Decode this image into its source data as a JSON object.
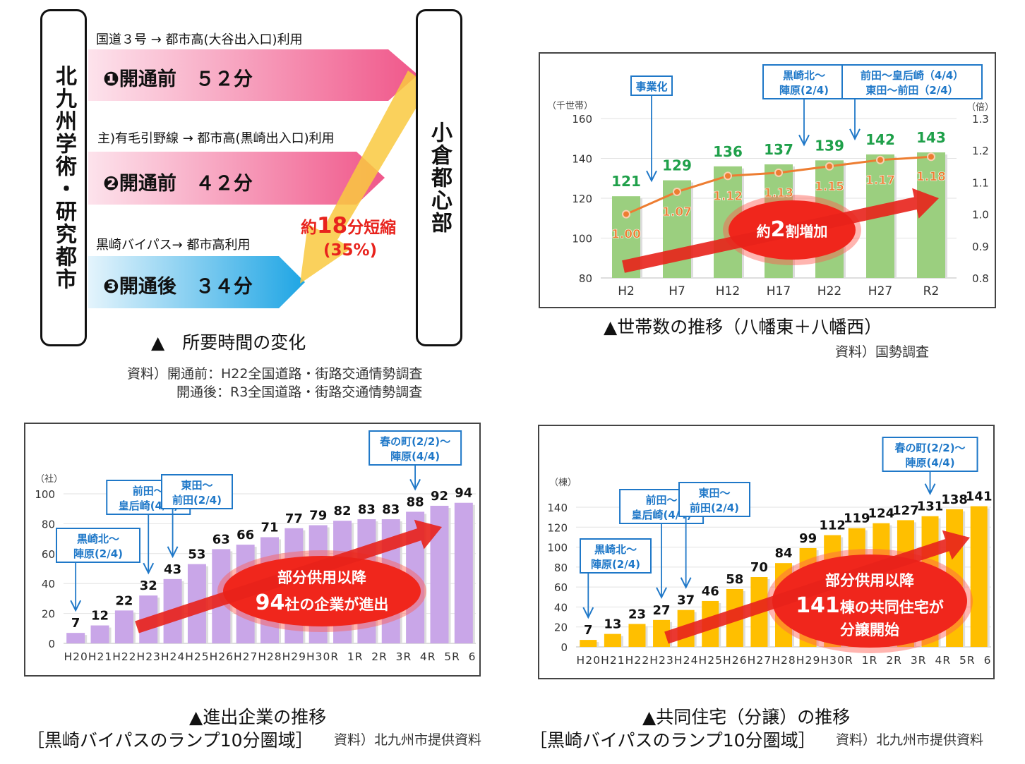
{
  "travel_time": {
    "origin": "北九州学術・研究都市",
    "destination": "小倉都心部",
    "routes": [
      {
        "route": "国道３号 → 都市高(大谷出入口)利用",
        "label": "❶開通前　５２分",
        "color": "#f06292"
      },
      {
        "route": "主)有毛引野線 → 都市高(黒崎出入口)利用",
        "label": "❷開通前　４２分",
        "color": "#f06292"
      },
      {
        "route": "黒崎バイパス→ 都市高利用",
        "label": "❸開通後　３４分",
        "color": "#29a8e0"
      }
    ],
    "reduction_prefix": "約",
    "reduction_value": "18",
    "reduction_suffix": "分短縮",
    "reduction_percent": "(35%)",
    "caption": "▲　所要時間の変化",
    "source_line1": "資料）開通前：H22全国道路・街路交通情勢調査",
    "source_line2": "開通後：R3全国道路・街路交通情勢調査"
  },
  "chart_data": [
    {
      "type": "bar",
      "title": "",
      "caption": "▲世帯数の推移（八幡東＋八幡西）",
      "source": "資料）国勢調査",
      "categories": [
        "H2",
        "H7",
        "H12",
        "H17",
        "H22",
        "H27",
        "R2"
      ],
      "values": [
        121,
        129,
        136,
        137,
        139,
        142,
        143
      ],
      "ylabel": "（千世帯）",
      "ylim": [
        80,
        160
      ],
      "yticks": [
        80,
        100,
        120,
        140,
        160
      ],
      "y2label": "（倍）",
      "y2lim": [
        0.8,
        1.3
      ],
      "y2ticks": [
        "0.8",
        "0.9",
        "1.0",
        "1.1",
        "1.2",
        "1.3"
      ],
      "line": {
        "values": [
          1.0,
          1.07,
          1.12,
          1.13,
          1.15,
          1.17,
          1.18
        ],
        "labels": [
          "1.00",
          "1.07",
          "1.12",
          "1.13",
          "1.15",
          "1.17",
          "1.18"
        ],
        "color": "#ed7d31"
      },
      "bar_color": "#9bcf7f",
      "value_label_color": "#1fa04a",
      "grid": true,
      "annotations": [
        {
          "text": [
            "事業化"
          ],
          "category": "H2"
        },
        {
          "text": [
            "黒崎北～",
            "陣原(2/4)"
          ],
          "category": "H17"
        },
        {
          "text": [
            "前田～皇后崎（4/4）",
            "東田～前田（2/4）"
          ],
          "category": "H22"
        }
      ],
      "highlight": [
        "約",
        "2",
        "割増加"
      ]
    },
    {
      "type": "bar",
      "title": "",
      "caption_line1": "▲進出企業の推移",
      "caption_line2": "［黒崎バイパスのランプ10分圏域］",
      "source": "資料）北九州市提供資料",
      "categories": [
        "H20",
        "H21",
        "H22",
        "H23",
        "H24",
        "H25",
        "H26",
        "H27",
        "H28",
        "H29",
        "H30",
        "R1",
        "R2",
        "R3",
        "R4",
        "R5",
        "R6"
      ],
      "values": [
        7,
        12,
        22,
        32,
        43,
        53,
        63,
        66,
        71,
        77,
        79,
        82,
        83,
        83,
        88,
        92,
        94
      ],
      "ylabel": "（社）",
      "ylim": [
        0,
        100
      ],
      "yticks": [
        0,
        20,
        40,
        60,
        80,
        100
      ],
      "bar_color": "#c9a6e8",
      "value_label_color": "#111",
      "grid": true,
      "annotations": [
        {
          "text": [
            "黒崎北～",
            "陣原(2/4)"
          ],
          "category": "H20"
        },
        {
          "text": [
            "前田～",
            "皇后崎(4/4)"
          ],
          "category": "H23"
        },
        {
          "text": [
            "東田～",
            "前田(2/4)"
          ],
          "category": "H24"
        },
        {
          "text": [
            "春の町(2/2)～",
            "陣原(4/4)"
          ],
          "category": "R4"
        }
      ],
      "highlight_line1": "部分供用以降",
      "highlight_line2": [
        "94",
        "社の企業が進出"
      ]
    },
    {
      "type": "bar",
      "title": "",
      "caption_line1": "▲共同住宅（分譲）の推移",
      "caption_line2": "［黒崎バイパスのランプ10分圏域］",
      "source": "資料）北九州市提供資料",
      "categories": [
        "H20",
        "H21",
        "H22",
        "H23",
        "H24",
        "H25",
        "H26",
        "H27",
        "H28",
        "H29",
        "H30",
        "R1",
        "R2",
        "R3",
        "R4",
        "R5",
        "R6"
      ],
      "values": [
        7,
        13,
        23,
        27,
        37,
        46,
        58,
        70,
        84,
        99,
        112,
        119,
        124,
        127,
        131,
        138,
        141
      ],
      "ylabel": "（棟）",
      "ylim": [
        0,
        140
      ],
      "yticks": [
        0,
        20,
        40,
        60,
        80,
        100,
        120,
        140
      ],
      "bar_color": "#ffbf00",
      "value_label_color": "#111",
      "grid": true,
      "annotations": [
        {
          "text": [
            "黒崎北～",
            "陣原(2/4)"
          ],
          "category": "H20"
        },
        {
          "text": [
            "前田～",
            "皇后崎(4/4)"
          ],
          "category": "H23"
        },
        {
          "text": [
            "東田～",
            "前田(2/4)"
          ],
          "category": "H24"
        },
        {
          "text": [
            "春の町(2/2)～",
            "陣原(4/4)"
          ],
          "category": "R4"
        }
      ],
      "highlight_line1": "部分供用以降",
      "highlight_line2": [
        "141",
        "棟の共同住宅が"
      ],
      "highlight_line3": "分譲開始"
    }
  ]
}
